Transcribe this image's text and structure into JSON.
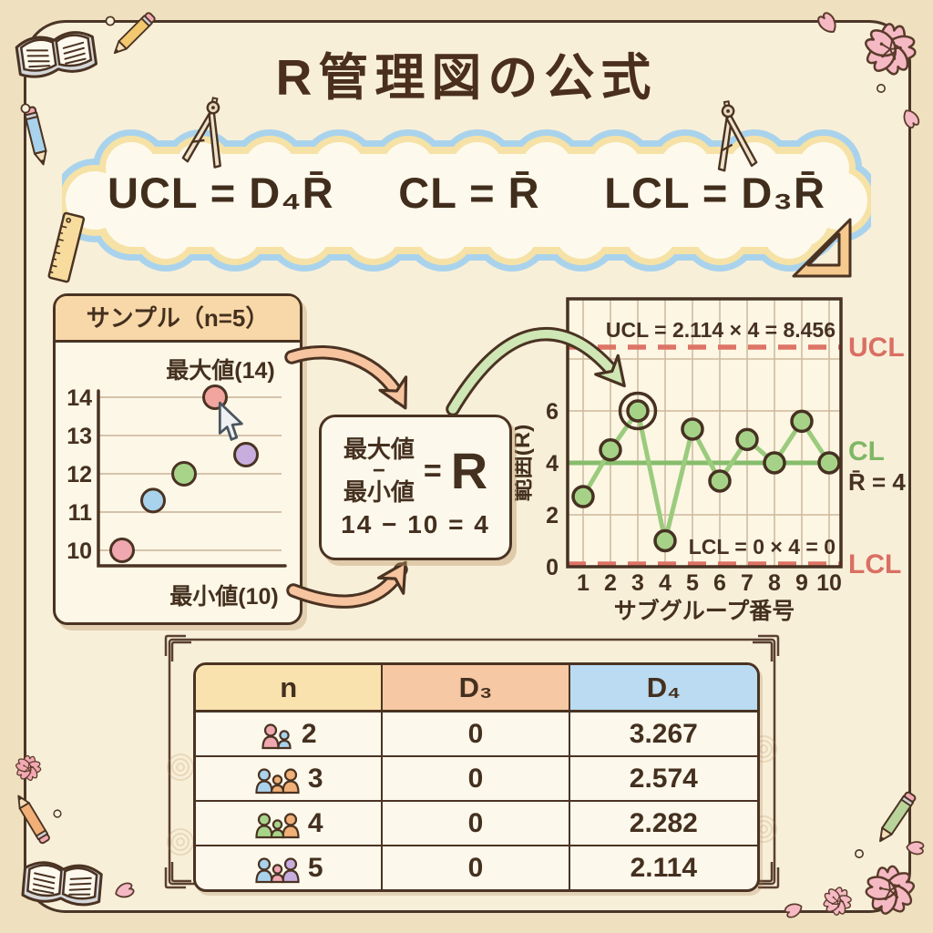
{
  "title": "R管理図の公式",
  "formula_banner": {
    "ucl": "UCL = D₄R̄",
    "cl": "CL = R̄",
    "lcl": "LCL = D₃R̄"
  },
  "sample_panel": {
    "header": "サンプル（n=5）",
    "max_label": "最大値(14)",
    "min_label": "最小値(10)"
  },
  "range_box": {
    "numerator": "最大値",
    "minus": "−",
    "denominator": "最小値",
    "equals": "=",
    "result": "R",
    "calculation": "14 − 10 = 4"
  },
  "chart_data": [
    {
      "type": "scatter",
      "title": "サンプル（n=5）",
      "x": [
        1,
        2,
        3,
        4,
        5
      ],
      "y": [
        10,
        11.3,
        12,
        14,
        12.5
      ],
      "point_colors": [
        "#f0a8b0",
        "#a9d2ec",
        "#a8d48a",
        "#f2a49e",
        "#c7aede"
      ],
      "yticks": [
        14,
        13,
        12,
        11,
        10
      ],
      "ylim": [
        9.6,
        14.6
      ],
      "grid": true,
      "cursor_point_index": 3,
      "max_annotation": "最大値(14)",
      "min_annotation": "最小値(10)"
    },
    {
      "type": "line",
      "x": [
        1,
        2,
        3,
        4,
        5,
        6,
        7,
        8,
        9,
        10
      ],
      "y": [
        2.7,
        4.5,
        6,
        1,
        5.3,
        3.3,
        4.9,
        4,
        5.6,
        4
      ],
      "highlight_index": 2,
      "ucl": 8.456,
      "cl": 4,
      "lcl": 0,
      "yticks": [
        0,
        2,
        4,
        6
      ],
      "ylim": [
        0,
        10.3
      ],
      "grid": true,
      "xlabel": "サブグループ番号",
      "ylabel": "範囲(R)",
      "ucl_annotation": "UCL = 2.114 × 4 = 8.456",
      "lcl_annotation": "LCL = 0 × 4 = 0",
      "ucl_label": "UCL",
      "cl_label": "CL",
      "lcl_label": "LCL",
      "rbar_label": "R̄ = 4",
      "line_color": "#9bcb7d",
      "point_color": "#a6d287",
      "cl_color": "#86bd6d",
      "limit_color": "#dd7466"
    }
  ],
  "table": {
    "headers": [
      "n",
      "D₃",
      "D₄"
    ],
    "rows": [
      {
        "n": "2",
        "d3": "0",
        "d4": "3.267",
        "icons": [
          {
            "c": "#f0a8b0",
            "s": "lg"
          },
          {
            "c": "#a9d2ec",
            "s": "sm"
          }
        ]
      },
      {
        "n": "3",
        "d3": "0",
        "d4": "2.574",
        "icons": [
          {
            "c": "#a9d2ec",
            "s": "lg"
          },
          {
            "c": "#f0b077",
            "s": "sm"
          },
          {
            "c": "#f0b077",
            "s": "lg"
          }
        ]
      },
      {
        "n": "4",
        "d3": "0",
        "d4": "2.282",
        "icons": [
          {
            "c": "#a8d48a",
            "s": "lg"
          },
          {
            "c": "#a8d48a",
            "s": "sm"
          },
          {
            "c": "#f0b077",
            "s": "lg"
          }
        ]
      },
      {
        "n": "5",
        "d3": "0",
        "d4": "2.114",
        "icons": [
          {
            "c": "#a9d2ec",
            "s": "lg"
          },
          {
            "c": "#f2a9b4",
            "s": "sm"
          },
          {
            "c": "#c7aede",
            "s": "lg"
          }
        ]
      }
    ]
  },
  "colors": {
    "background": "#efe0bf",
    "panel": "#f8efd9",
    "card": "#fdf8ec",
    "brown": "#44301f",
    "cloud_blue": "#a9d3ec",
    "cloud_yellow": "#f6e2a6",
    "salmon": "#dd7466",
    "green": "#86bd6d",
    "peach_header": "#f8d8a8",
    "header_n": "#f9e2ad",
    "header_d3": "#f6c8a3",
    "header_d4": "#badbf1"
  },
  "decorations": [
    "open-book-icon",
    "pencil-icon",
    "drafting-compass-icon",
    "ruler-icon",
    "set-square-icon",
    "sakura-flower-icon",
    "sakura-petal-icon",
    "cursor-icon",
    "people-icon"
  ]
}
